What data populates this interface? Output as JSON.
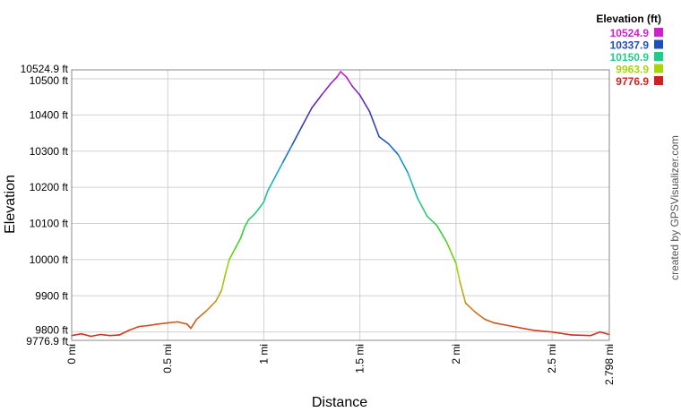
{
  "chart_data": {
    "type": "line",
    "title": "",
    "xlabel": "Distance",
    "ylabel": "Elevation",
    "xlim": [
      0,
      2.798
    ],
    "ylim": [
      9776.9,
      10524.9
    ],
    "x_ticks": [
      {
        "value": 0,
        "label": "0 mi"
      },
      {
        "value": 0.5,
        "label": "0.5 mi"
      },
      {
        "value": 1,
        "label": "1 mi"
      },
      {
        "value": 1.5,
        "label": "1.5 mi"
      },
      {
        "value": 2,
        "label": "2 mi"
      },
      {
        "value": 2.5,
        "label": "2.5 mi"
      },
      {
        "value": 2.798,
        "label": "2.798 mi"
      }
    ],
    "y_ticks": [
      {
        "value": 9776.9,
        "label": "9776.9 ft"
      },
      {
        "value": 9800,
        "label": "9800 ft"
      },
      {
        "value": 9900,
        "label": "9900 ft"
      },
      {
        "value": 10000,
        "label": "10000 ft"
      },
      {
        "value": 10100,
        "label": "10100 ft"
      },
      {
        "value": 10200,
        "label": "10200 ft"
      },
      {
        "value": 10300,
        "label": "10300 ft"
      },
      {
        "value": 10400,
        "label": "10400 ft"
      },
      {
        "value": 10500,
        "label": "10500 ft"
      },
      {
        "value": 10524.9,
        "label": "10524.9 ft"
      }
    ],
    "grid": true,
    "legend": {
      "title": "Elevation (ft)",
      "placement": "top-right",
      "entries": [
        {
          "label": "10524.9",
          "color": "#cc22cc"
        },
        {
          "label": "10337.9",
          "color": "#1f4fb5"
        },
        {
          "label": "10150.9",
          "color": "#22cc88"
        },
        {
          "label": "9963.9",
          "color": "#a8d40a"
        },
        {
          "label": "9776.9",
          "color": "#cc2222"
        }
      ]
    },
    "color_scale": [
      {
        "elev": 9776.9,
        "color": "#cc2222"
      },
      {
        "elev": 9870,
        "color": "#c98a1c"
      },
      {
        "elev": 9963.9,
        "color": "#a8d40a"
      },
      {
        "elev": 10060,
        "color": "#3ccf2d"
      },
      {
        "elev": 10150.9,
        "color": "#22cc88"
      },
      {
        "elev": 10245,
        "color": "#1aa5d8"
      },
      {
        "elev": 10337.9,
        "color": "#1f4fb5"
      },
      {
        "elev": 10430,
        "color": "#5a28b8"
      },
      {
        "elev": 10524.9,
        "color": "#cc22cc"
      }
    ],
    "series": [
      {
        "x": [
          0,
          0.05,
          0.1,
          0.15,
          0.2,
          0.25,
          0.3,
          0.35,
          0.4,
          0.45,
          0.5,
          0.55,
          0.6,
          0.62,
          0.65,
          0.7,
          0.75,
          0.78,
          0.8,
          0.82,
          0.85,
          0.88,
          0.9,
          0.92,
          0.95,
          0.98,
          1.0,
          1.02,
          1.05,
          1.1,
          1.15,
          1.2,
          1.25,
          1.3,
          1.35,
          1.38,
          1.4,
          1.43,
          1.46,
          1.5,
          1.55,
          1.6,
          1.65,
          1.7,
          1.75,
          1.8,
          1.85,
          1.9,
          1.95,
          2.0,
          2.02,
          2.05,
          2.1,
          2.15,
          2.2,
          2.3,
          2.4,
          2.5,
          2.6,
          2.7,
          2.75,
          2.798
        ],
        "y": [
          9790,
          9795,
          9788,
          9793,
          9790,
          9792,
          9805,
          9815,
          9818,
          9822,
          9825,
          9828,
          9822,
          9810,
          9835,
          9858,
          9885,
          9915,
          9960,
          10000,
          10030,
          10060,
          10090,
          10110,
          10125,
          10145,
          10160,
          10190,
          10220,
          10270,
          10320,
          10370,
          10420,
          10455,
          10488,
          10505,
          10520,
          10505,
          10480,
          10455,
          10410,
          10340,
          10320,
          10290,
          10240,
          10170,
          10120,
          10095,
          10050,
          9990,
          9940,
          9880,
          9855,
          9835,
          9825,
          9815,
          9805,
          9800,
          9792,
          9790,
          9800,
          9793
        ]
      }
    ]
  },
  "credit": "created by GPSVisualizer.com"
}
